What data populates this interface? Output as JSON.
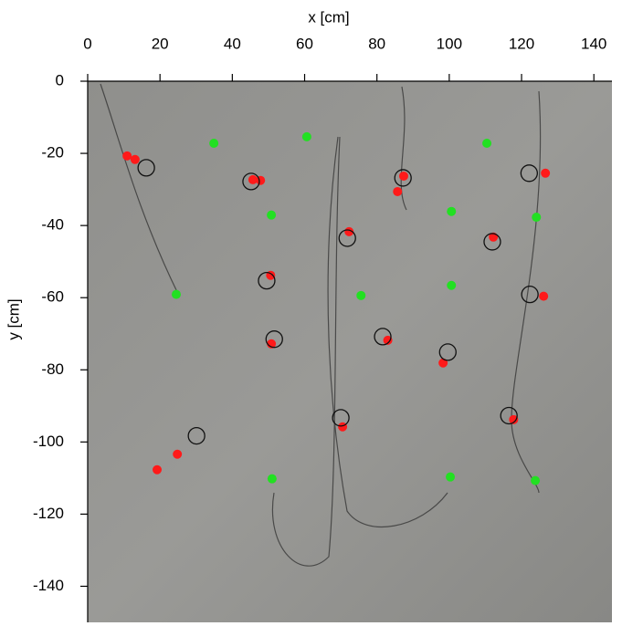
{
  "chart_data": {
    "type": "scatter",
    "x_label": "x [cm]",
    "y_label": "y [cm]",
    "xlim": [
      0,
      145
    ],
    "ylim": [
      -150,
      0
    ],
    "xticks": [
      0,
      20,
      40,
      60,
      80,
      100,
      120,
      140
    ],
    "yticks": [
      0,
      -20,
      -40,
      -60,
      -80,
      -100,
      -120,
      -140
    ],
    "series": [
      {
        "color": "#22e022",
        "marker": "filled",
        "x": [
          34.9,
          60.6,
          50.8,
          24.5,
          75.6,
          100.6,
          100.6,
          110.4,
          124.1,
          51.0,
          100.3,
          123.8
        ],
        "y": [
          -17.2,
          -15.4,
          -37.1,
          -59.1,
          -59.4,
          -36.1,
          -56.6,
          -17.2,
          -37.7,
          -110.2,
          -109.7,
          -110.7
        ]
      },
      {
        "color": "#ff1a1a",
        "marker": "filled",
        "x": [
          10.9,
          13.1,
          45.7,
          47.8,
          50.6,
          50.8,
          72.3,
          70.5,
          83.0,
          87.4,
          85.7,
          98.3,
          112.2,
          126.6,
          126.1,
          117.8,
          24.8,
          19.2
        ],
        "y": [
          -20.7,
          -21.7,
          -27.3,
          -27.5,
          -53.8,
          -72.8,
          -41.7,
          -95.8,
          -71.8,
          -26.3,
          -30.6,
          -78.1,
          -43.2,
          -25.5,
          -59.6,
          -93.8,
          -103.4,
          -107.7
        ]
      },
      {
        "color": "#111111",
        "marker": "open",
        "x": [
          16.2,
          45.2,
          49.5,
          51.6,
          71.8,
          70.0,
          81.6,
          87.2,
          99.6,
          111.9,
          122.1,
          122.3,
          116.5,
          30.1
        ],
        "y": [
          -24.0,
          -27.8,
          -55.3,
          -71.5,
          -43.5,
          -93.3,
          -70.8,
          -26.8,
          -75.1,
          -44.5,
          -25.5,
          -59.1,
          -92.7,
          -98.3
        ]
      }
    ]
  }
}
